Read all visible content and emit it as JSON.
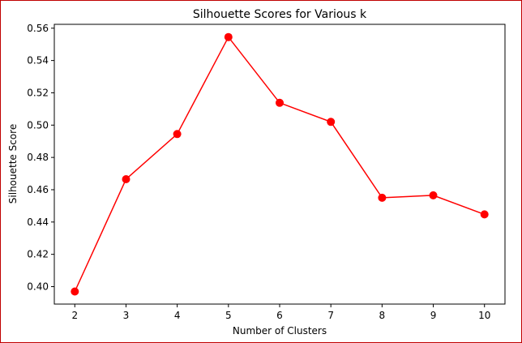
{
  "chart_data": {
    "type": "line",
    "title": "Silhouette Scores for Various k",
    "xlabel": "Number of Clusters",
    "ylabel": "Silhouette Score",
    "x": [
      2,
      3,
      4,
      5,
      6,
      7,
      8,
      9,
      10
    ],
    "series": [
      {
        "values": [
          0.397,
          0.4665,
          0.4945,
          0.5545,
          0.5138,
          0.502,
          0.455,
          0.4565,
          0.4447
        ],
        "color": "#ff0000",
        "marker": "circle"
      }
    ],
    "xticks": [
      "2",
      "3",
      "4",
      "5",
      "6",
      "7",
      "8",
      "9",
      "10"
    ],
    "yticks": [
      "0.40",
      "0.42",
      "0.44",
      "0.46",
      "0.48",
      "0.50",
      "0.52",
      "0.54",
      "0.56"
    ],
    "xlim": [
      1.6,
      10.4
    ],
    "ylim": [
      0.3892,
      0.5624
    ],
    "grid": false,
    "legend": "none"
  }
}
